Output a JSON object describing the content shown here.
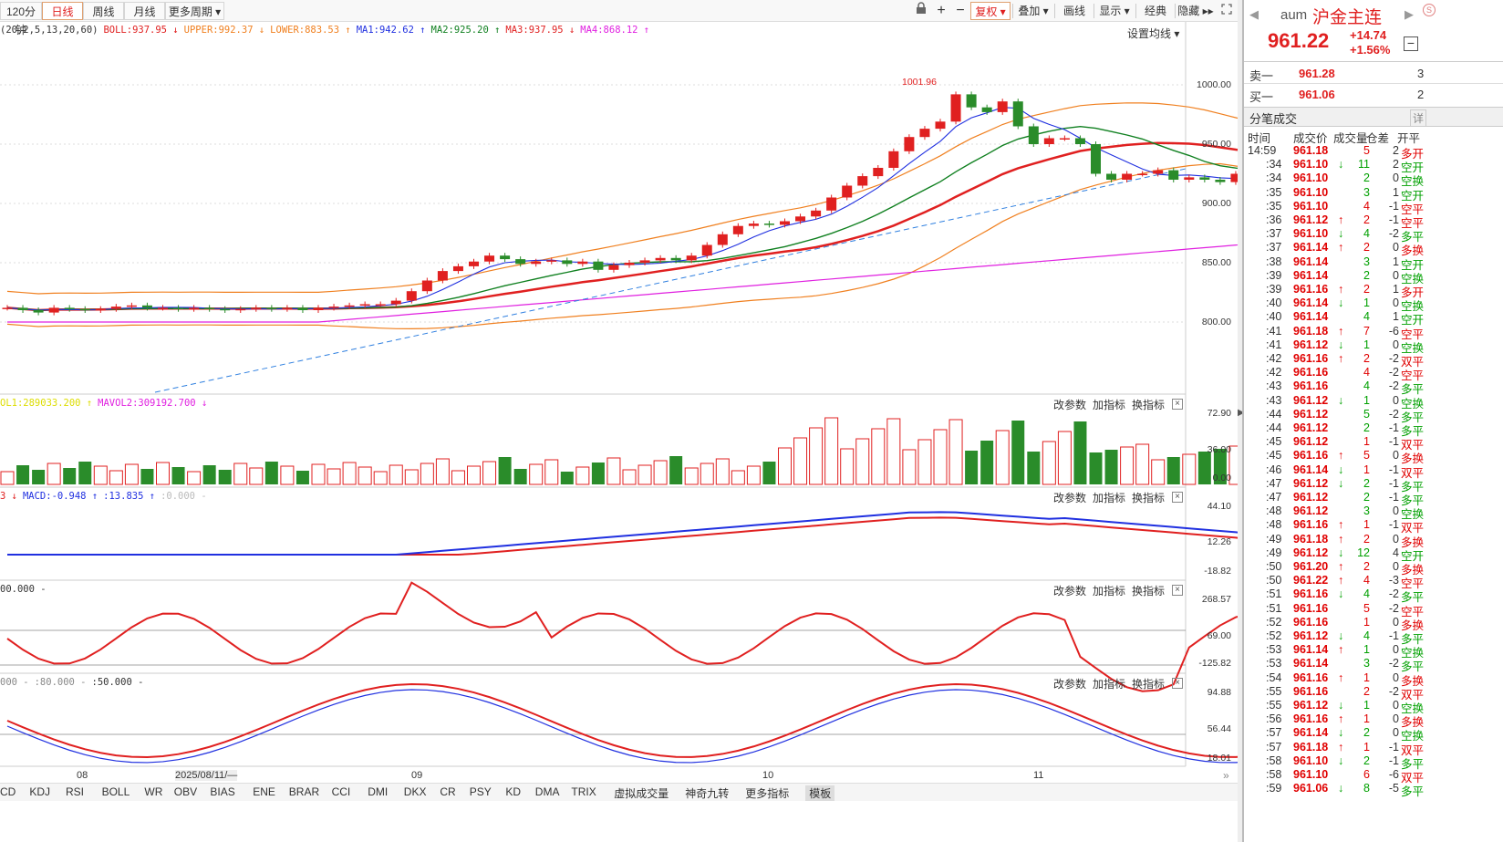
{
  "toolbar": {
    "periods": [
      "120分钟",
      "日线",
      "周线",
      "月线",
      "更多周期 ▾"
    ],
    "active_period": "日线",
    "right_tools": [
      "复权 ▾",
      "叠加 ▾",
      "画线",
      "显示 ▾",
      "经典",
      "隐藏 ▸▸"
    ],
    "icons": [
      "lock-icon",
      "plus-icon",
      "minus-icon",
      "fullscreen-icon"
    ]
  },
  "main_chart": {
    "legend": [
      {
        "text": "(20,2,5,13,20,60)",
        "color": "#333333"
      },
      {
        "text": "BOLL:937.95 ↓",
        "color": "#e02020"
      },
      {
        "text": "UPPER:992.37 ↓",
        "color": "#f08020"
      },
      {
        "text": "LOWER:883.53 ↑",
        "color": "#f08020"
      },
      {
        "text": "MA1:942.62 ↑",
        "color": "#2030e0"
      },
      {
        "text": "MA2:925.20 ↑",
        "color": "#108020"
      },
      {
        "text": "MA3:937.95 ↓",
        "color": "#e02020"
      },
      {
        "text": "MA4:868.12 ↑",
        "color": "#e020e0"
      }
    ],
    "settings_label": "设置均线 ▾",
    "y_ticks": [
      "1000.00",
      "950.00",
      "900.00",
      "850.00",
      "800.00"
    ],
    "high_annotation": "1001.96"
  },
  "panels": [
    {
      "legend": [
        {
          "text": "OL1:289033.200 ↑",
          "color": "#dddd00"
        },
        {
          "text": "MAVOL2:309192.700 ↓",
          "color": "#e020e0"
        }
      ],
      "y_ticks": [
        "72.90",
        "36.00",
        "0.00"
      ]
    },
    {
      "legend": [
        {
          "text": "3 ↓",
          "color": "#e02020"
        },
        {
          "text": "MACD:-0.948 ↑",
          "color": "#2030e0"
        },
        {
          "text": ":13.835 ↑",
          "color": "#2030e0"
        },
        {
          "text": ":0.000 -",
          "color": "#bbbbbb"
        }
      ],
      "y_ticks": [
        "44.10",
        "12.26",
        "-18.82"
      ]
    },
    {
      "legend": [
        {
          "text": "00.000 -",
          "color": "#333333"
        }
      ],
      "y_ticks": [
        "268.57",
        "69.00",
        "-125.82"
      ]
    },
    {
      "legend": [
        {
          "text": "000 -",
          "color": "#888888"
        },
        {
          "text": ":80.000 -",
          "color": "#888888"
        },
        {
          "text": ":50.000 -",
          "color": "#333333"
        }
      ],
      "y_ticks": [
        "94.88",
        "56.44",
        "18.01"
      ]
    }
  ],
  "panel_tools": [
    "改参数",
    "加指标",
    "换指标"
  ],
  "x_axis": {
    "labels": [
      "08",
      "2025/08/11/—",
      "09",
      "10",
      "11"
    ]
  },
  "indicator_tabs": [
    "CD",
    "KDJ",
    "RSI",
    "BOLL",
    "WR",
    "OBV",
    "BIAS",
    "ENE",
    "BRAR",
    "CCI",
    "DMI",
    "DKX",
    "CR",
    "PSY",
    "KD",
    "DMA",
    "TRIX",
    "虚拟成交量",
    "神奇九转",
    "更多指标",
    "模板"
  ],
  "active_indicator_tab": "模板",
  "quote": {
    "code": "aum",
    "name": "沪金主连",
    "price": "961.22",
    "change": "+14.74",
    "change_pct": "+1.56%",
    "sell_label": "卖一",
    "sell_price": "961.28",
    "sell_vol": "3",
    "buy_label": "买一",
    "buy_price": "961.06",
    "buy_vol": "2",
    "ticks_title": "分笔成交",
    "detail_btn": "详",
    "headers": [
      "时间",
      "成交价",
      "成交量",
      "仓差",
      "开平"
    ],
    "ticks": [
      [
        "14:59",
        "961.18",
        "",
        "5",
        "2",
        "多开",
        "r"
      ],
      [
        ":34",
        "961.10",
        "↓",
        "11",
        "2",
        "空开",
        "g"
      ],
      [
        ":34",
        "961.10",
        "",
        "2",
        "0",
        "空换",
        "g"
      ],
      [
        ":35",
        "961.10",
        "",
        "3",
        "1",
        "空开",
        "g"
      ],
      [
        ":35",
        "961.10",
        "",
        "4",
        "-1",
        "空平",
        "r"
      ],
      [
        ":36",
        "961.12",
        "↑",
        "2",
        "-1",
        "空平",
        "r"
      ],
      [
        ":37",
        "961.10",
        "↓",
        "4",
        "-2",
        "多平",
        "g"
      ],
      [
        ":37",
        "961.14",
        "↑",
        "2",
        "0",
        "多换",
        "r"
      ],
      [
        ":38",
        "961.14",
        "",
        "3",
        "1",
        "空开",
        "g"
      ],
      [
        ":39",
        "961.14",
        "",
        "2",
        "0",
        "空换",
        "g"
      ],
      [
        ":39",
        "961.16",
        "↑",
        "2",
        "1",
        "多开",
        "r"
      ],
      [
        ":40",
        "961.14",
        "↓",
        "1",
        "0",
        "空换",
        "g"
      ],
      [
        ":40",
        "961.14",
        "",
        "4",
        "1",
        "空开",
        "g"
      ],
      [
        ":41",
        "961.18",
        "↑",
        "7",
        "-6",
        "空平",
        "r"
      ],
      [
        ":41",
        "961.12",
        "↓",
        "1",
        "0",
        "空换",
        "g"
      ],
      [
        ":42",
        "961.16",
        "↑",
        "2",
        "-2",
        "双平",
        "r"
      ],
      [
        ":42",
        "961.16",
        "",
        "4",
        "-2",
        "空平",
        "r"
      ],
      [
        ":43",
        "961.16",
        "",
        "4",
        "-2",
        "多平",
        "g"
      ],
      [
        ":43",
        "961.12",
        "↓",
        "1",
        "0",
        "空换",
        "g"
      ],
      [
        ":44",
        "961.12",
        "",
        "5",
        "-2",
        "多平",
        "g"
      ],
      [
        ":44",
        "961.12",
        "",
        "2",
        "-1",
        "多平",
        "g"
      ],
      [
        ":45",
        "961.12",
        "",
        "1",
        "-1",
        "双平",
        "r"
      ],
      [
        ":45",
        "961.16",
        "↑",
        "5",
        "0",
        "多换",
        "r"
      ],
      [
        ":46",
        "961.14",
        "↓",
        "1",
        "-1",
        "双平",
        "r"
      ],
      [
        ":47",
        "961.12",
        "↓",
        "2",
        "-1",
        "多平",
        "g"
      ],
      [
        ":47",
        "961.12",
        "",
        "2",
        "-1",
        "多平",
        "g"
      ],
      [
        ":48",
        "961.12",
        "",
        "3",
        "0",
        "空换",
        "g"
      ],
      [
        ":48",
        "961.16",
        "↑",
        "1",
        "-1",
        "双平",
        "r"
      ],
      [
        ":49",
        "961.18",
        "↑",
        "2",
        "0",
        "多换",
        "r"
      ],
      [
        ":49",
        "961.12",
        "↓",
        "12",
        "4",
        "空开",
        "g"
      ],
      [
        ":50",
        "961.20",
        "↑",
        "2",
        "0",
        "多换",
        "r"
      ],
      [
        ":50",
        "961.22",
        "↑",
        "4",
        "-3",
        "空平",
        "r"
      ],
      [
        ":51",
        "961.16",
        "↓",
        "4",
        "-2",
        "多平",
        "g"
      ],
      [
        ":51",
        "961.16",
        "",
        "5",
        "-2",
        "空平",
        "r"
      ],
      [
        ":52",
        "961.16",
        "",
        "1",
        "0",
        "多换",
        "r"
      ],
      [
        ":52",
        "961.12",
        "↓",
        "4",
        "-1",
        "多平",
        "g"
      ],
      [
        ":53",
        "961.14",
        "↑",
        "1",
        "0",
        "空换",
        "g"
      ],
      [
        ":53",
        "961.14",
        "",
        "3",
        "-2",
        "多平",
        "g"
      ],
      [
        ":54",
        "961.16",
        "↑",
        "1",
        "0",
        "多换",
        "r"
      ],
      [
        ":55",
        "961.16",
        "",
        "2",
        "-2",
        "双平",
        "r"
      ],
      [
        ":55",
        "961.12",
        "↓",
        "1",
        "0",
        "空换",
        "g"
      ],
      [
        ":56",
        "961.16",
        "↑",
        "1",
        "0",
        "多换",
        "r"
      ],
      [
        ":57",
        "961.14",
        "↓",
        "2",
        "0",
        "空换",
        "g"
      ],
      [
        ":57",
        "961.18",
        "↑",
        "1",
        "-1",
        "双平",
        "r"
      ],
      [
        ":58",
        "961.10",
        "↓",
        "2",
        "-1",
        "多平",
        "g"
      ],
      [
        ":58",
        "961.10",
        "",
        "6",
        "-6",
        "双平",
        "r"
      ],
      [
        ":59",
        "961.06",
        "↓",
        "8",
        "-5",
        "多平",
        "g"
      ]
    ]
  },
  "colors": {
    "up": "#e02020",
    "down": "#2a8c2a",
    "ma1": "#2030e0",
    "ma2": "#108020",
    "ma3": "#e02020",
    "ma4": "#e020e0",
    "boll": "#f08020"
  }
}
